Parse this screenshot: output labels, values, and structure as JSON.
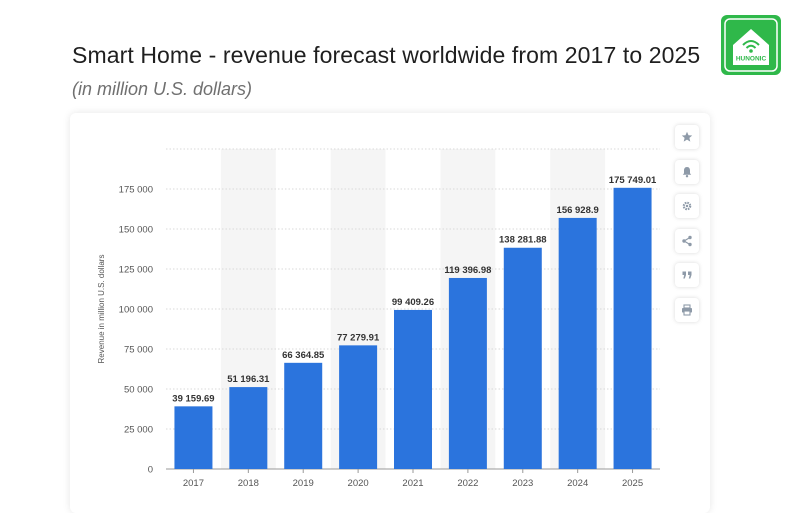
{
  "header": {
    "title": "Smart Home - revenue forecast worldwide from 2017 to 2025",
    "subtitle": "(in million U.S. dollars)"
  },
  "logo": {
    "name": "house-wifi-logo",
    "text": "HUNONIC",
    "color": "#2fb84a"
  },
  "toolbar": {
    "buttons": [
      {
        "name": "favorite",
        "icon": "star-icon"
      },
      {
        "name": "notification",
        "icon": "bell-icon"
      },
      {
        "name": "settings",
        "icon": "gear-icon"
      },
      {
        "name": "share",
        "icon": "share-icon"
      },
      {
        "name": "cite",
        "icon": "quote-icon"
      },
      {
        "name": "print",
        "icon": "print-icon"
      }
    ]
  },
  "colors": {
    "bar": "#2b74dd",
    "band": "#f5f5f5",
    "grid": "#d9d9d9",
    "tick_text": "#555555",
    "label_text": "#333333"
  },
  "chart_data": {
    "type": "bar",
    "categories": [
      "2017",
      "2018",
      "2019",
      "2020",
      "2021",
      "2022",
      "2023",
      "2024",
      "2025"
    ],
    "values": [
      39159.69,
      51196.31,
      66364.85,
      77279.91,
      99409.26,
      119396.98,
      138281.88,
      156928.9,
      175749.01
    ],
    "value_labels": [
      "39 159.69",
      "51 196.31",
      "66 364.85",
      "77 279.91",
      "99 409.26",
      "119 396.98",
      "138 281.88",
      "156 928.9",
      "175 749.01"
    ],
    "y_ticks": [
      0,
      25000,
      50000,
      75000,
      100000,
      125000,
      150000,
      175000
    ],
    "y_tick_labels": [
      "0",
      "25 000",
      "50 000",
      "75 000",
      "100 000",
      "125 000",
      "150 000",
      "175 000"
    ],
    "ylim": [
      0,
      200000
    ],
    "xlabel": "",
    "ylabel": "Revenue in million U.S. dollars",
    "grid": true,
    "legend": "none"
  }
}
